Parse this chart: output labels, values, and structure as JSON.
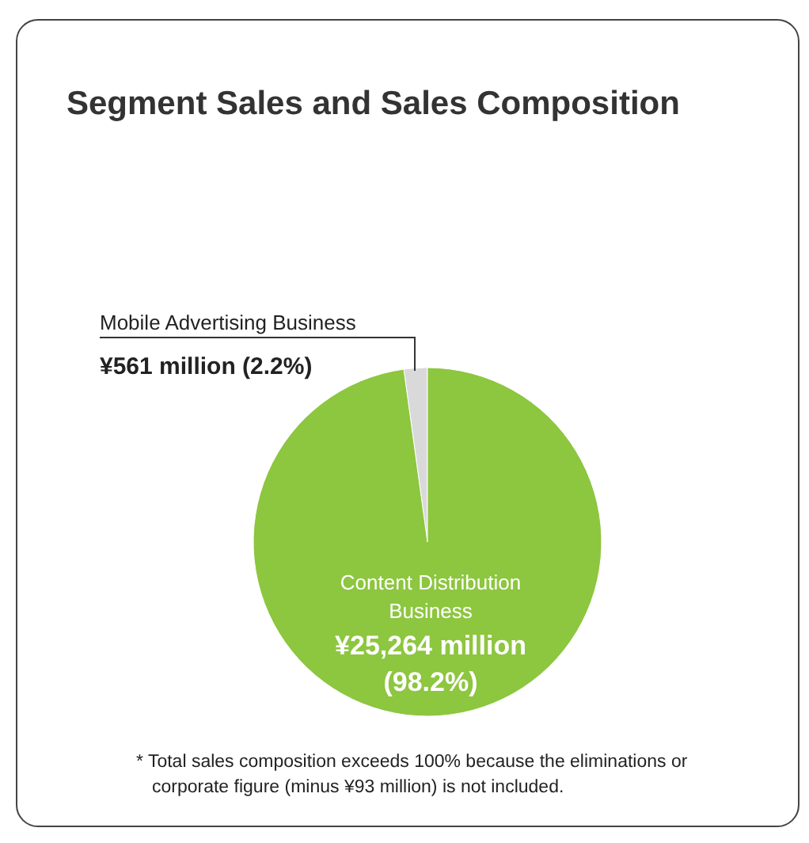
{
  "chart_data": {
    "type": "pie",
    "title": "Segment Sales and Sales Composition",
    "categories": [
      "Mobile Advertising Business",
      "Content Distribution Business"
    ],
    "values": [
      561,
      25264
    ],
    "value_labels": [
      "¥561 million",
      "¥25,264 million"
    ],
    "colors": [
      "#d9d9d9",
      "#8dc63f"
    ],
    "annotations": [
      {
        "text": "(2.2%)",
        "x": "Mobile Advertising Business"
      },
      {
        "text": "(98.2%)",
        "x": "Content Distribution Business"
      },
      "* Total sales composition exceeds 100% because the eliminations or corporate figure (minus ¥93 million) is not included."
    ]
  }
}
